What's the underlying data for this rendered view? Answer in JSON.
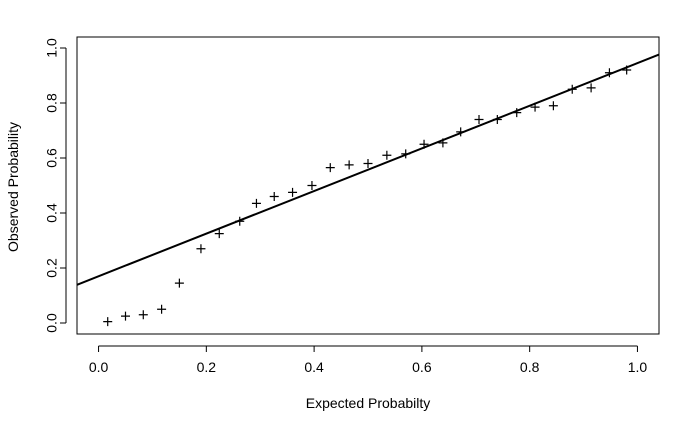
{
  "chart_data": {
    "type": "scatter",
    "title": "",
    "xlabel": "Expected Probabilty",
    "ylabel": "Observed Probability",
    "xlim": [
      -0.04,
      1.04
    ],
    "ylim": [
      -0.04,
      1.04
    ],
    "xticks": [
      "0.0",
      "0.2",
      "0.4",
      "0.6",
      "0.8",
      "1.0"
    ],
    "yticks": [
      "0.0",
      "0.2",
      "0.4",
      "0.6",
      "0.8",
      "1.0"
    ],
    "grid": false,
    "legend": "none",
    "marker": "+",
    "points": {
      "x": [
        0.017,
        0.05,
        0.083,
        0.117,
        0.15,
        0.19,
        0.224,
        0.262,
        0.293,
        0.326,
        0.36,
        0.396,
        0.43,
        0.465,
        0.5,
        0.535,
        0.57,
        0.604,
        0.639,
        0.672,
        0.706,
        0.74,
        0.776,
        0.81,
        0.844,
        0.879,
        0.914,
        0.948,
        0.98
      ],
      "y": [
        0.005,
        0.025,
        0.03,
        0.05,
        0.145,
        0.27,
        0.325,
        0.37,
        0.435,
        0.46,
        0.475,
        0.5,
        0.565,
        0.575,
        0.58,
        0.61,
        0.615,
        0.65,
        0.655,
        0.695,
        0.74,
        0.74,
        0.765,
        0.785,
        0.79,
        0.85,
        0.855,
        0.91,
        0.92
      ]
    },
    "fit_line": {
      "intercept": 0.17,
      "slope": 0.775
    },
    "colors": {
      "points": "#000000",
      "line": "#000000",
      "axes": "#000000"
    }
  }
}
